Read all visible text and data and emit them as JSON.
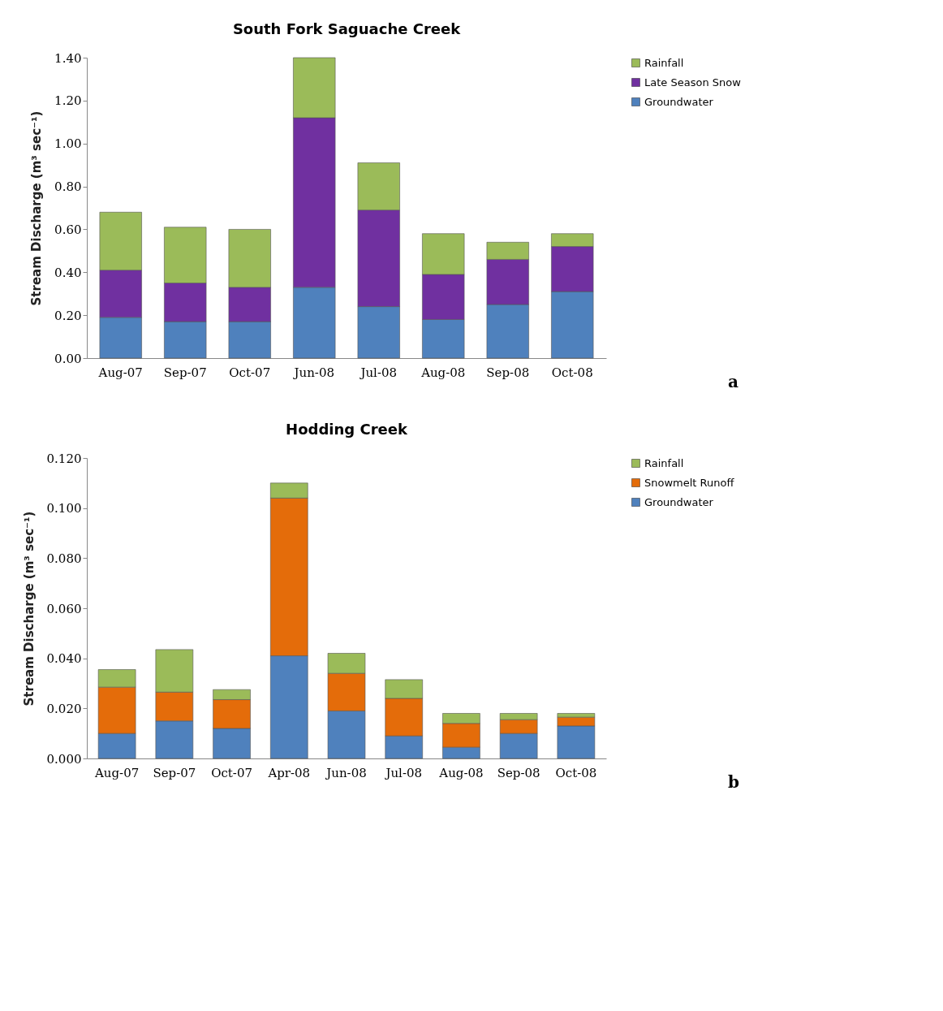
{
  "chart_data": [
    {
      "type": "bar",
      "title": "South Fork Saguache Creek",
      "ylabel": "Stream Discharge (m³ sec⁻¹)",
      "stacked": true,
      "legend": "right",
      "annotations": [
        "a"
      ],
      "categories": [
        "Aug-07",
        "Sep-07",
        "Oct-07",
        "Jun-08",
        "Jul-08",
        "Aug-08",
        "Sep-08",
        "Oct-08"
      ],
      "ylim": [
        0,
        1.4
      ],
      "yticks": [
        {
          "value": 0,
          "label": "0.00"
        },
        {
          "value": 0.2,
          "label": "0.20"
        },
        {
          "value": 0.4,
          "label": "0.40"
        },
        {
          "value": 0.6,
          "label": "0.60"
        },
        {
          "value": 0.8,
          "label": "0.80"
        },
        {
          "value": 1.0,
          "label": "1.00"
        },
        {
          "value": 1.2,
          "label": "1.20"
        },
        {
          "value": 1.4,
          "label": "1.40"
        }
      ],
      "series": [
        {
          "name": "Groundwater",
          "color": "#4f81bd",
          "values": [
            0.19,
            0.17,
            0.17,
            0.33,
            0.24,
            0.18,
            0.25,
            0.31
          ]
        },
        {
          "name": "Late Season Snow",
          "color": "#7030a0",
          "values": [
            0.22,
            0.18,
            0.16,
            0.79,
            0.45,
            0.21,
            0.21,
            0.21
          ]
        },
        {
          "name": "Rainfall",
          "color": "#9bbb59",
          "values": [
            0.27,
            0.26,
            0.27,
            0.28,
            0.22,
            0.19,
            0.08,
            0.06
          ]
        }
      ]
    },
    {
      "type": "bar",
      "title": "Hodding Creek",
      "ylabel": "Stream Discharge (m³ sec⁻¹)",
      "stacked": true,
      "legend": "right",
      "annotations": [
        "b"
      ],
      "categories": [
        "Aug-07",
        "Sep-07",
        "Oct-07",
        "Apr-08",
        "Jun-08",
        "Jul-08",
        "Aug-08",
        "Sep-08",
        "Oct-08"
      ],
      "ylim": [
        0,
        0.12
      ],
      "yticks": [
        {
          "value": 0,
          "label": "0.000"
        },
        {
          "value": 0.02,
          "label": "0.020"
        },
        {
          "value": 0.04,
          "label": "0.040"
        },
        {
          "value": 0.06,
          "label": "0.060"
        },
        {
          "value": 0.08,
          "label": "0.080"
        },
        {
          "value": 0.1,
          "label": "0.100"
        },
        {
          "value": 0.12,
          "label": "0.120"
        }
      ],
      "series": [
        {
          "name": "Groundwater",
          "color": "#4f81bd",
          "values": [
            0.01,
            0.015,
            0.012,
            0.041,
            0.019,
            0.009,
            0.0045,
            0.01,
            0.013
          ]
        },
        {
          "name": "Snowmelt Runoff",
          "color": "#e46c0a",
          "values": [
            0.0185,
            0.0115,
            0.0115,
            0.063,
            0.015,
            0.015,
            0.0095,
            0.0055,
            0.0035
          ]
        },
        {
          "name": "Rainfall",
          "color": "#9bbb59",
          "values": [
            0.007,
            0.017,
            0.004,
            0.006,
            0.008,
            0.0075,
            0.004,
            0.0025,
            0.0015
          ]
        }
      ]
    }
  ]
}
